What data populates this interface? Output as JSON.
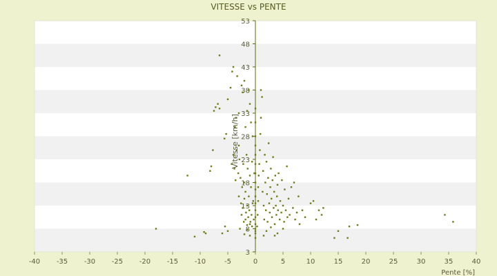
{
  "chart_data": {
    "type": "scatter",
    "title": "VITESSE vs PENTE",
    "xlabel": "Pente [%]",
    "ylabel": "Vitesse [km/h]",
    "xlim": [
      -40,
      40
    ],
    "ylim": [
      3,
      53
    ],
    "x_ticks": [
      -40,
      -35,
      -30,
      -25,
      -20,
      -15,
      -10,
      -5,
      0,
      5,
      10,
      15,
      20,
      25,
      30,
      35,
      40
    ],
    "y_ticks": [
      3,
      8,
      13,
      18,
      23,
      28,
      33,
      38,
      43,
      48,
      53
    ],
    "grid": "horizontal bands",
    "legend": "none",
    "colors": {
      "background": "#eef2cf",
      "plot_band_light": "#ffffff",
      "plot_band_dark": "#f1f1f1",
      "point": "#6b7a1a",
      "zero_axis": "#556b10",
      "title": "#555a1e"
    },
    "series": [
      {
        "points": [
          [
            -18,
            8.0
          ],
          [
            -12.3,
            19.5
          ],
          [
            -11,
            6.3
          ],
          [
            -9.3,
            7.3
          ],
          [
            -9.0,
            7.0
          ],
          [
            -8.2,
            20.5
          ],
          [
            -8.0,
            21.5
          ],
          [
            -7.7,
            25.0
          ],
          [
            -7.5,
            33.5
          ],
          [
            -7.2,
            34.3
          ],
          [
            -6.8,
            35.0
          ],
          [
            -6.5,
            34.0
          ],
          [
            -6.5,
            45.5
          ],
          [
            -6.0,
            7.0
          ],
          [
            -5.6,
            27.5
          ],
          [
            -5.5,
            8.5
          ],
          [
            -5.3,
            28.5
          ],
          [
            -5.0,
            7.5
          ],
          [
            -5.0,
            36.0
          ],
          [
            -4.5,
            38.5
          ],
          [
            -4.2,
            42.0
          ],
          [
            -4.0,
            43.0
          ],
          [
            -3.7,
            30.0
          ],
          [
            -3.5,
            32.0
          ],
          [
            -3.3,
            41.0
          ],
          [
            -3.0,
            33.0
          ],
          [
            -3.0,
            26.0
          ],
          [
            -2.8,
            8.0
          ],
          [
            -2.5,
            39.0
          ],
          [
            -2.3,
            37.5
          ],
          [
            -2.0,
            40.0
          ],
          [
            -1.8,
            30.0
          ],
          [
            -1.5,
            33.5
          ],
          [
            -1.2,
            38.0
          ],
          [
            -1.0,
            35.0
          ],
          [
            -0.8,
            31.0
          ],
          [
            -0.5,
            28.0
          ],
          [
            -4.3,
            22.0
          ],
          [
            -4.0,
            24.0
          ],
          [
            -3.8,
            21.0
          ],
          [
            -3.6,
            18.5
          ],
          [
            -3.4,
            25.0
          ],
          [
            -3.1,
            20.0
          ],
          [
            -2.9,
            23.0
          ],
          [
            -2.7,
            19.0
          ],
          [
            -2.4,
            17.0
          ],
          [
            -2.2,
            22.0
          ],
          [
            -2.0,
            18.0
          ],
          [
            -1.8,
            16.0
          ],
          [
            -1.6,
            24.0
          ],
          [
            -1.4,
            21.0
          ],
          [
            -1.2,
            15.0
          ],
          [
            -1.0,
            19.5
          ],
          [
            -0.8,
            17.0
          ],
          [
            -0.6,
            22.5
          ],
          [
            -0.4,
            14.0
          ],
          [
            -0.2,
            20.0
          ],
          [
            -3.0,
            15.0
          ],
          [
            -2.6,
            13.5
          ],
          [
            -2.3,
            12.5
          ],
          [
            -2.0,
            14.5
          ],
          [
            -1.7,
            11.5
          ],
          [
            -1.5,
            13.0
          ],
          [
            -1.3,
            10.5
          ],
          [
            -1.1,
            12.0
          ],
          [
            -0.9,
            9.5
          ],
          [
            -0.7,
            11.0
          ],
          [
            -0.5,
            13.5
          ],
          [
            -0.3,
            10.0
          ],
          [
            -2.5,
            11.0
          ],
          [
            -2.1,
            9.5
          ],
          [
            -1.8,
            10.0
          ],
          [
            -1.5,
            8.8
          ],
          [
            -1.0,
            9.0
          ],
          [
            -0.6,
            8.5
          ],
          [
            0.0,
            6.0
          ],
          [
            0.0,
            7.0
          ],
          [
            0.0,
            7.5
          ],
          [
            0.0,
            8.0
          ],
          [
            0.0,
            9.0
          ],
          [
            0.0,
            10.5
          ],
          [
            0.0,
            12.0
          ],
          [
            0.0,
            13.5
          ],
          [
            0.0,
            15.0
          ],
          [
            0.0,
            16.5
          ],
          [
            0.0,
            18.0
          ],
          [
            0.0,
            20.0
          ],
          [
            0.0,
            22.0
          ],
          [
            0.0,
            24.0
          ],
          [
            0.0,
            26.0
          ],
          [
            0.0,
            28.0
          ],
          [
            0.0,
            31.0
          ],
          [
            0.0,
            34.0
          ],
          [
            0.3,
            8.5
          ],
          [
            0.4,
            11.0
          ],
          [
            0.5,
            14.0
          ],
          [
            0.5,
            17.0
          ],
          [
            0.6,
            19.5
          ],
          [
            0.7,
            22.0
          ],
          [
            0.8,
            25.0
          ],
          [
            0.9,
            28.5
          ],
          [
            1.0,
            32.0
          ],
          [
            1.0,
            38.0
          ],
          [
            1.2,
            36.5
          ],
          [
            1.3,
            16.0
          ],
          [
            1.4,
            20.5
          ],
          [
            1.5,
            13.0
          ],
          [
            1.6,
            10.0
          ],
          [
            1.7,
            24.0
          ],
          [
            1.8,
            18.0
          ],
          [
            1.9,
            12.0
          ],
          [
            2.0,
            22.5
          ],
          [
            2.1,
            15.5
          ],
          [
            2.2,
            9.5
          ],
          [
            2.3,
            19.0
          ],
          [
            2.4,
            26.5
          ],
          [
            2.5,
            13.5
          ],
          [
            2.6,
            11.5
          ],
          [
            2.7,
            17.0
          ],
          [
            2.8,
            21.0
          ],
          [
            2.9,
            14.5
          ],
          [
            3.0,
            10.5
          ],
          [
            3.1,
            18.5
          ],
          [
            3.2,
            23.5
          ],
          [
            3.3,
            12.5
          ],
          [
            3.4,
            16.0
          ],
          [
            3.5,
            9.0
          ],
          [
            3.6,
            19.5
          ],
          [
            3.7,
            13.0
          ],
          [
            3.8,
            11.0
          ],
          [
            3.9,
            15.0
          ],
          [
            4.0,
            17.5
          ],
          [
            4.1,
            12.0
          ],
          [
            4.2,
            20.0
          ],
          [
            4.4,
            10.0
          ],
          [
            4.5,
            14.0
          ],
          [
            4.7,
            11.5
          ],
          [
            4.8,
            18.5
          ],
          [
            5.0,
            13.0
          ],
          [
            5.2,
            9.5
          ],
          [
            5.3,
            16.5
          ],
          [
            5.5,
            12.0
          ],
          [
            5.7,
            21.5
          ],
          [
            5.8,
            10.5
          ],
          [
            6.0,
            14.5
          ],
          [
            6.2,
            11.0
          ],
          [
            6.5,
            17.0
          ],
          [
            6.8,
            12.5
          ],
          [
            7.0,
            18.0
          ],
          [
            7.2,
            10.0
          ],
          [
            7.5,
            11.5
          ],
          [
            7.8,
            15.0
          ],
          [
            8.0,
            9.0
          ],
          [
            8.5,
            12.0
          ],
          [
            9.0,
            10.5
          ],
          [
            10.0,
            13.5
          ],
          [
            10.5,
            14.0
          ],
          [
            11.0,
            10.0
          ],
          [
            11.5,
            12.0
          ],
          [
            12.0,
            11.0
          ],
          [
            12.3,
            12.5
          ],
          [
            14.3,
            6.0
          ],
          [
            15.0,
            7.5
          ],
          [
            16.7,
            6.0
          ],
          [
            17.0,
            8.5
          ],
          [
            18.5,
            8.8
          ],
          [
            34.3,
            11.0
          ],
          [
            35.8,
            9.5
          ],
          [
            1.5,
            6.5
          ],
          [
            2.0,
            7.5
          ],
          [
            3.5,
            6.5
          ],
          [
            4.0,
            7.0
          ],
          [
            5.0,
            8.0
          ],
          [
            2.8,
            8.3
          ],
          [
            -1.5,
            7.8
          ],
          [
            -2.0,
            6.8
          ],
          [
            -1.0,
            6.5
          ]
        ]
      }
    ]
  }
}
